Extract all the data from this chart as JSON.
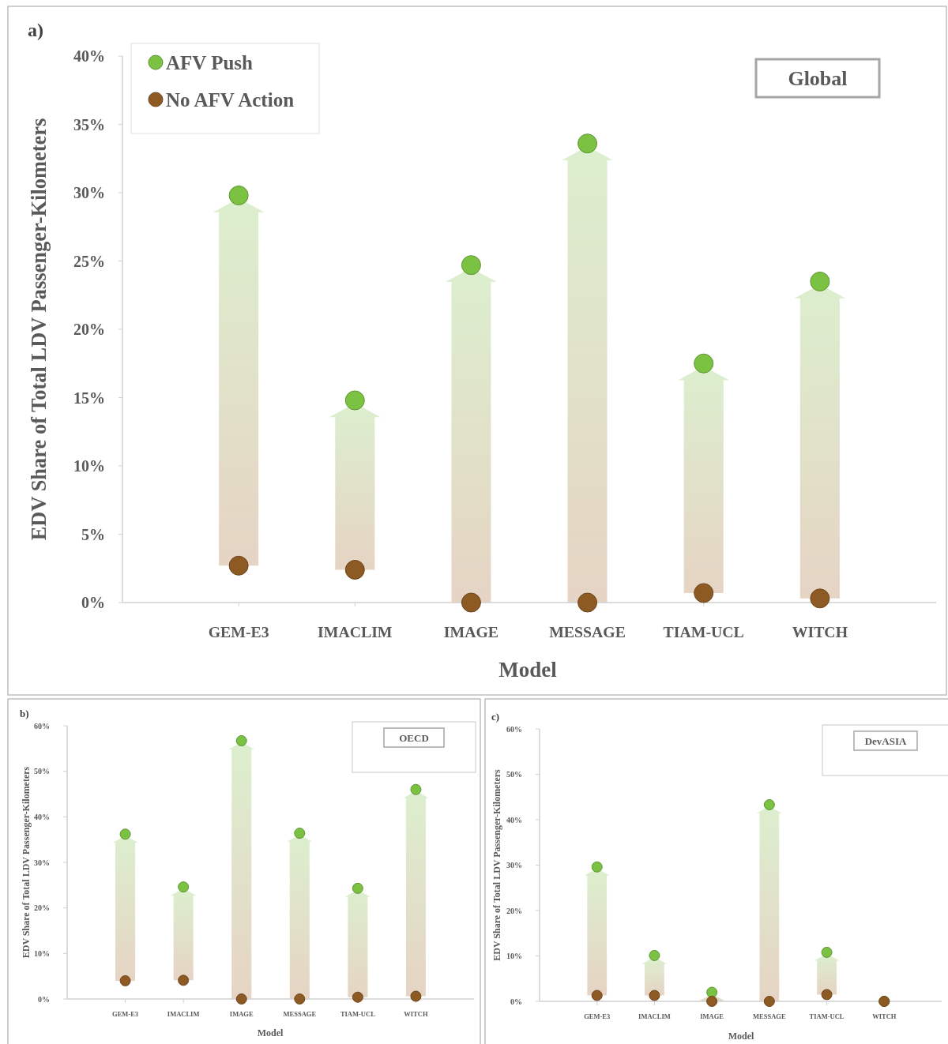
{
  "chart_data": [
    {
      "type": "scatter",
      "title": "Global",
      "xlabel": "Model",
      "ylabel": "EDV Share of Total LDV Passenger-Kilometers",
      "annotations": [
        "a)"
      ],
      "categories": [
        "GEM-E3",
        "IMACLIM",
        "IMAGE",
        "MESSAGE",
        "TIAM-UCL",
        "WITCH"
      ],
      "series": [
        {
          "name": "AFV Push",
          "color": "#7cc242",
          "values": [
            29.8,
            14.8,
            24.7,
            33.6,
            17.5,
            23.5
          ]
        },
        {
          "name": "No AFV Action",
          "color": "#8e5a24",
          "values": [
            2.7,
            2.4,
            0,
            0,
            0.7,
            0.3
          ]
        }
      ],
      "ylim": [
        0,
        40
      ],
      "yticks": [
        {
          "value": 0,
          "label": "0%"
        },
        {
          "value": 5,
          "label": "5%"
        },
        {
          "value": 10,
          "label": "10%"
        },
        {
          "value": 15,
          "label": "15%"
        },
        {
          "value": 20,
          "label": "20%"
        },
        {
          "value": 25,
          "label": "25%"
        },
        {
          "value": 30,
          "label": "30%"
        },
        {
          "value": 35,
          "label": "35%"
        },
        {
          "value": 40,
          "label": "40%"
        }
      ],
      "legend": "top left",
      "marker": "circle",
      "grid": false
    },
    {
      "type": "scatter",
      "title": "OECD",
      "xlabel": "Model",
      "ylabel": "EDV Share of Total LDV Passenger-Kilometers",
      "annotations": [
        "b)"
      ],
      "categories": [
        "GEM-E3",
        "IMACLIM",
        "IMAGE",
        "MESSAGE",
        "TIAM-UCL",
        "WITCH"
      ],
      "series": [
        {
          "color": "#7cc242",
          "values": [
            36.2,
            24.6,
            56.7,
            36.4,
            24.3,
            46
          ]
        },
        {
          "color": "#8e5a24",
          "values": [
            4.0,
            4.1,
            0,
            0,
            0.4,
            0.6
          ]
        }
      ],
      "ylim": [
        0,
        60
      ],
      "yticks": [
        {
          "value": 0,
          "label": "0%"
        },
        {
          "value": 10,
          "label": "10%"
        },
        {
          "value": 20,
          "label": "20%"
        },
        {
          "value": 30,
          "label": "30%"
        },
        {
          "value": 40,
          "label": "40%"
        },
        {
          "value": 50,
          "label": "50%"
        },
        {
          "value": 60,
          "label": "60%"
        }
      ],
      "legend": false,
      "marker": "circle",
      "grid": false
    },
    {
      "type": "scatter",
      "title": "DevASIA",
      "xlabel": "Model",
      "ylabel": "EDV Share of Total LDV Passenger-Kilometers",
      "annotations": [
        "c)"
      ],
      "categories": [
        "GEM-E3",
        "IMACLIM",
        "IMAGE",
        "MESSAGE",
        "TIAM-UCL",
        "WITCH"
      ],
      "series": [
        {
          "color": "#7cc242",
          "values": [
            29.6,
            10.1,
            2.0,
            43.3,
            10.8,
            0
          ]
        },
        {
          "color": "#8e5a24",
          "values": [
            1.3,
            1.3,
            0,
            0,
            1.5,
            0
          ]
        }
      ],
      "ylim": [
        0,
        60
      ],
      "yticks": [
        {
          "value": 0,
          "label": "0%"
        },
        {
          "value": 10,
          "label": "10%"
        },
        {
          "value": 20,
          "label": "20%"
        },
        {
          "value": 30,
          "label": "30%"
        },
        {
          "value": 40,
          "label": "40%"
        },
        {
          "value": 50,
          "label": "50%"
        },
        {
          "value": 60,
          "label": "60%"
        }
      ],
      "legend": false,
      "marker": "circle",
      "grid": false
    }
  ]
}
